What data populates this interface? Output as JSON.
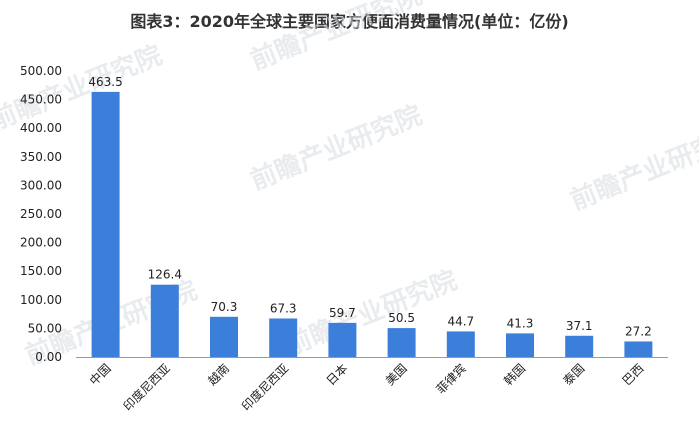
{
  "title": "图表3：2020年全球主要国家方便面消费量情况(单位：亿份)",
  "watermark": "前瞻产业研究院",
  "colors": {
    "bar": "#3b7fdb",
    "axis": "#9a9a9a",
    "text": "#222222"
  },
  "chart_data": {
    "type": "bar",
    "title": "图表3：2020年全球主要国家方便面消费量情况(单位：亿份)",
    "categories": [
      "中国",
      "印度尼西亚",
      "越南",
      "印度尼西亚",
      "日本",
      "美国",
      "菲律宾",
      "韩国",
      "泰国",
      "巴西"
    ],
    "values": [
      463.5,
      126.4,
      70.3,
      67.3,
      59.7,
      50.5,
      44.7,
      41.3,
      37.1,
      27.2
    ],
    "value_labels": [
      "463.5",
      "126.4",
      "70.3",
      "67.3",
      "59.7",
      "50.5",
      "44.7",
      "41.3",
      "37.1",
      "27.2"
    ],
    "yticks": [
      "0.00",
      "50.00",
      "100.00",
      "150.00",
      "200.00",
      "250.00",
      "300.00",
      "350.00",
      "400.00",
      "450.00",
      "500.00"
    ],
    "ylim": [
      0,
      500
    ],
    "grid": false,
    "legend": "none",
    "xlabel": "",
    "ylabel": ""
  }
}
